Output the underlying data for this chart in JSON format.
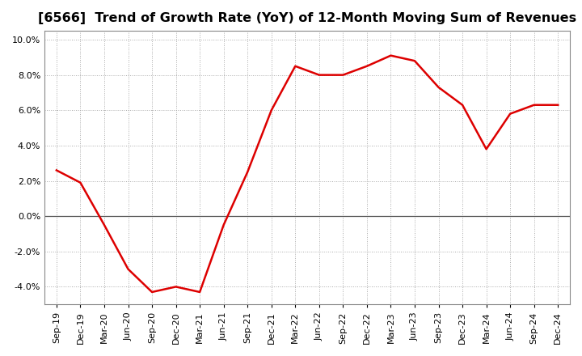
{
  "title": "[6566]  Trend of Growth Rate (YoY) of 12-Month Moving Sum of Revenues",
  "title_fontsize": 11.5,
  "line_color": "#dd0000",
  "background_color": "#ffffff",
  "grid_color": "#aaaaaa",
  "zero_line_color": "#555555",
  "ylim": [
    -0.05,
    0.105
  ],
  "yticks": [
    -0.04,
    -0.02,
    0.0,
    0.02,
    0.04,
    0.06,
    0.08,
    0.1
  ],
  "x_labels": [
    "Sep-19",
    "Dec-19",
    "Mar-20",
    "Jun-20",
    "Sep-20",
    "Dec-20",
    "Mar-21",
    "Jun-21",
    "Sep-21",
    "Dec-21",
    "Mar-22",
    "Jun-22",
    "Sep-22",
    "Dec-22",
    "Mar-23",
    "Jun-23",
    "Sep-23",
    "Dec-23",
    "Mar-24",
    "Jun-24",
    "Sep-24",
    "Dec-24"
  ],
  "y_values": [
    0.026,
    0.019,
    -0.005,
    -0.03,
    -0.043,
    -0.04,
    -0.043,
    -0.005,
    0.025,
    0.06,
    0.085,
    0.08,
    0.08,
    0.085,
    0.091,
    0.088,
    0.073,
    0.063,
    0.038,
    0.058,
    0.063,
    0.063
  ]
}
